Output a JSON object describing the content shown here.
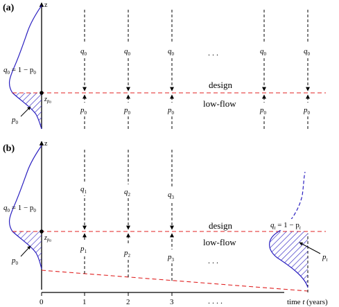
{
  "panel_a": {
    "label": "(a)",
    "axis_label": "z",
    "q_labels": [
      "q",
      "q",
      "q",
      "q",
      "q"
    ],
    "q_sub": "0",
    "p_labels": [
      "p",
      "p",
      "p",
      "p",
      "p"
    ],
    "p_sub": "0",
    "dots": ". . .",
    "design_line1": "design",
    "design_line2": "low-flow",
    "q0_eq": "q",
    "q0_eq_sub": "0",
    "q0_eq_rest": " = 1 − p",
    "q0_eq_rest_sub": "0",
    "p0_label": "p",
    "p0_sub": "0",
    "zp0": "z",
    "zp0_sub": "p",
    "zp0_subsub": "0"
  },
  "panel_b": {
    "label": "(b)",
    "axis_label": "z",
    "q_labels": [
      "q",
      "q",
      "q"
    ],
    "q_subs": [
      "1",
      "2",
      "3"
    ],
    "p_labels": [
      "p",
      "p",
      "p"
    ],
    "p_subs": [
      "1",
      "2",
      "3"
    ],
    "dots_mid": ". . .",
    "dots_axis": ". . . .",
    "design_line1": "design",
    "design_line2": "low-flow",
    "q0_eq": "q",
    "q0_eq_sub": "0",
    "q0_eq_rest": " = 1 − p",
    "q0_eq_rest_sub": "0",
    "p0_label": "p",
    "p0_sub": "0",
    "zp0": "z",
    "zp0_sub": "p",
    "zp0_subsub": "0",
    "qt_eq": "q",
    "qt_eq_sub": "t",
    "qt_eq_rest": " = 1 − p",
    "qt_eq_rest_sub": "t",
    "pt_label": "p",
    "pt_sub": "t",
    "x_ticks": [
      "0",
      "1",
      "2",
      "3"
    ],
    "time_label_pre": "time ",
    "time_label_t": "t",
    "time_label_post": " (years)"
  },
  "colors": {
    "curve": "#2a1fc0",
    "design_line": "#e02020",
    "hatch": "#2a1fc0",
    "axis": "#000000"
  }
}
